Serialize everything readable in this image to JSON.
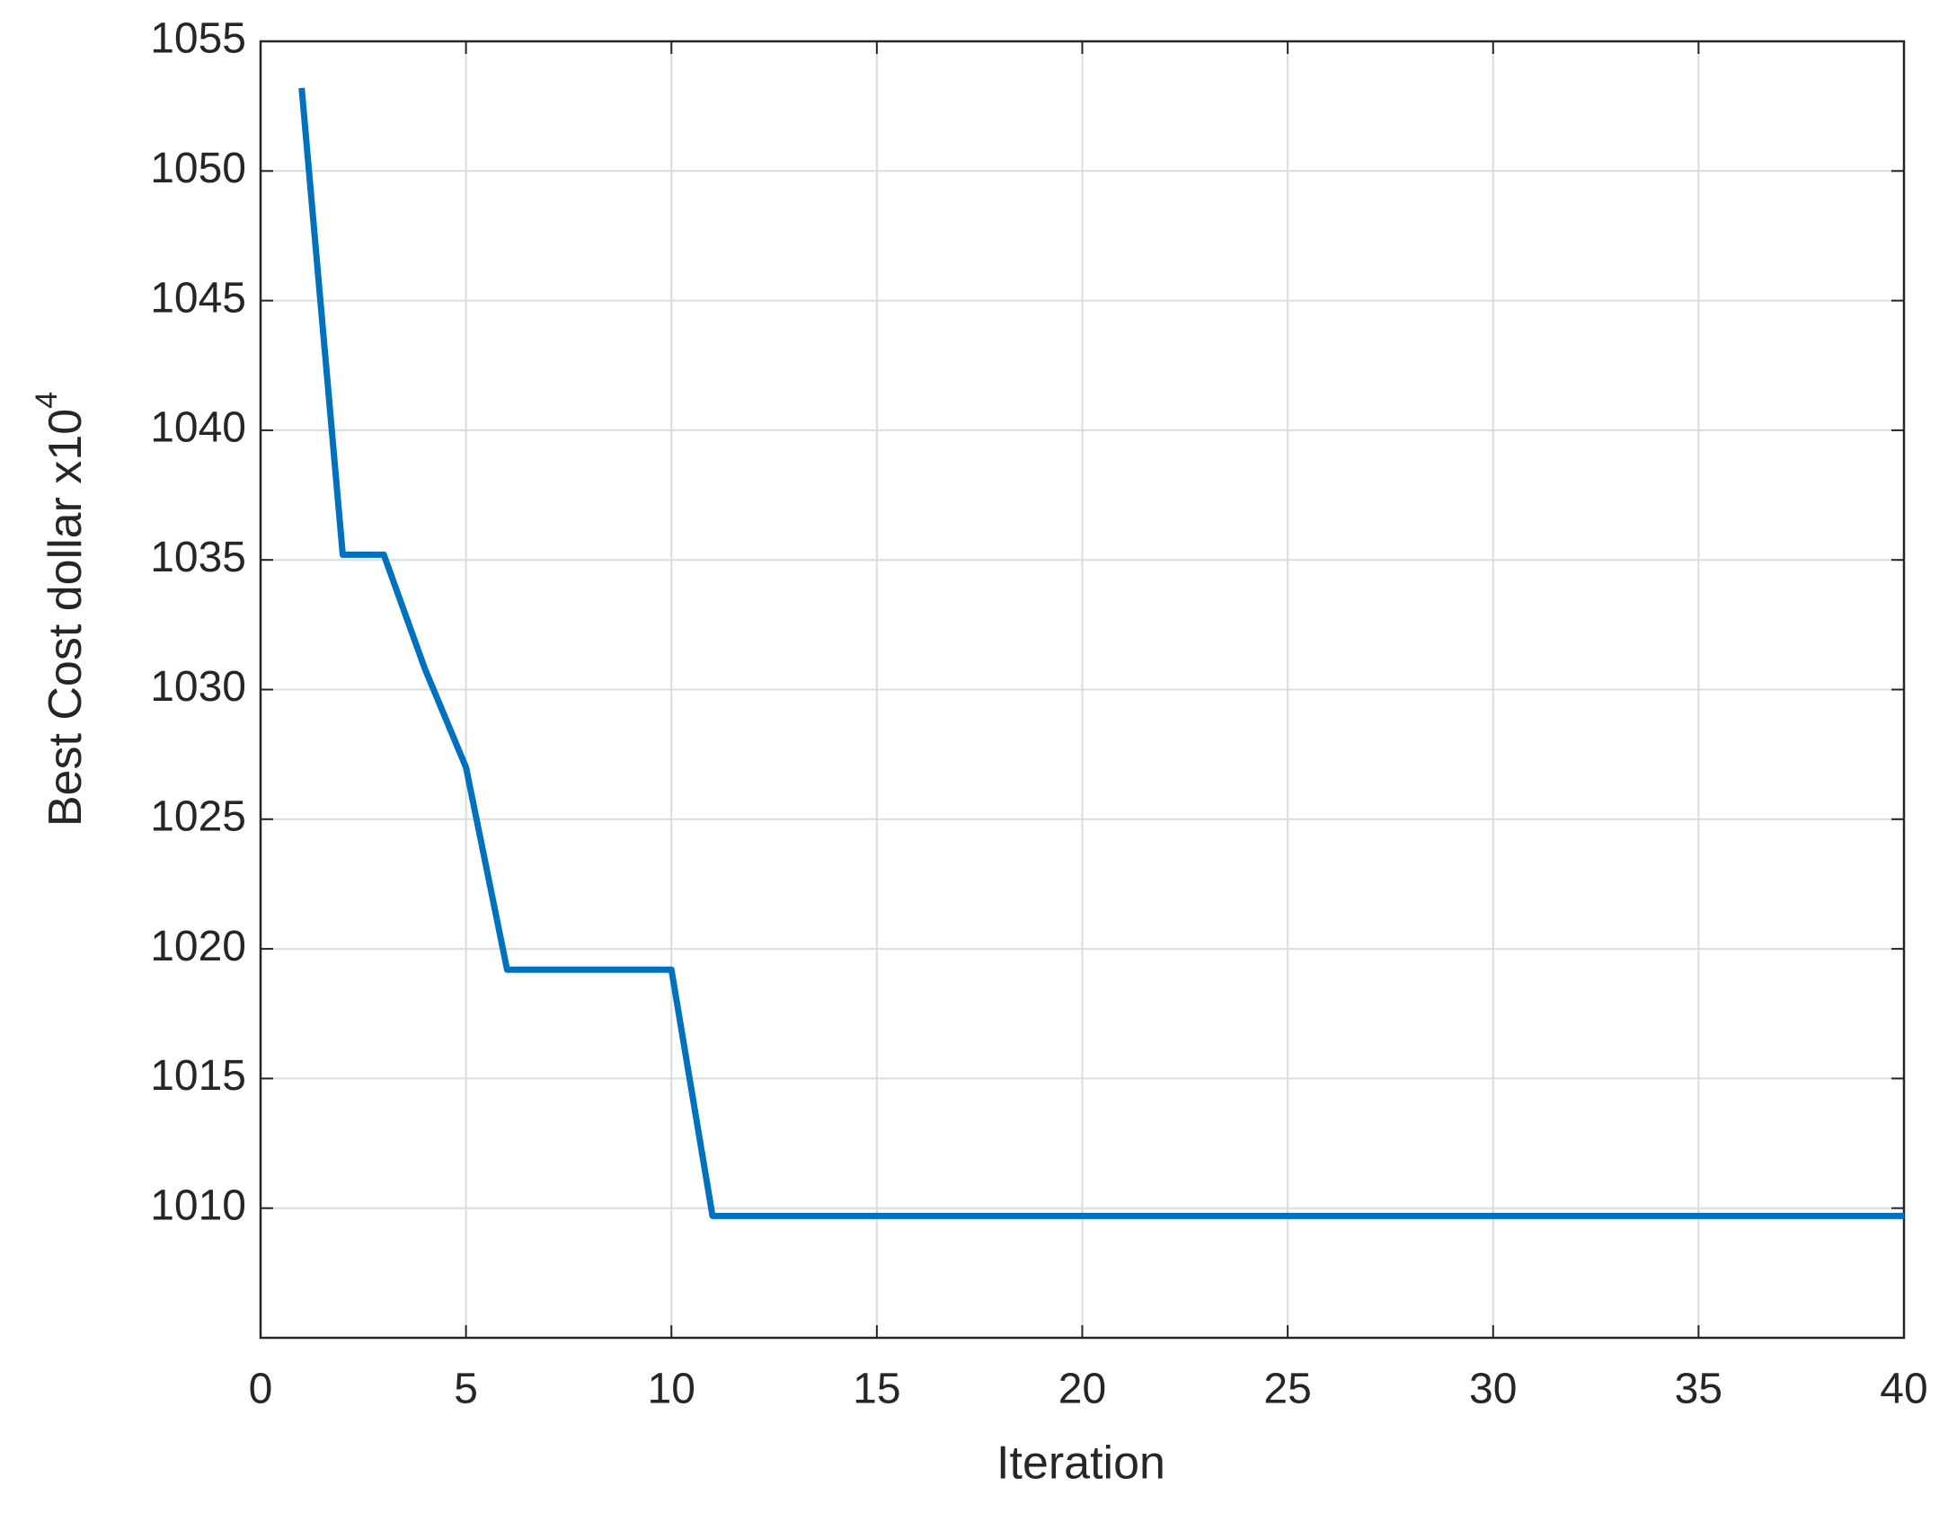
{
  "chart_data": {
    "type": "line",
    "xlabel": "Iteration",
    "ylabel": "Best Cost  dollar  x10",
    "ylabel_exponent": "4",
    "x": [
      1,
      2,
      3,
      4,
      5,
      6,
      7,
      8,
      9,
      10,
      11,
      12,
      13,
      14,
      15,
      16,
      17,
      18,
      19,
      20,
      21,
      22,
      23,
      24,
      25,
      26,
      27,
      28,
      29,
      30,
      31,
      32,
      33,
      34,
      35,
      36,
      37,
      38,
      39,
      40
    ],
    "series": [
      {
        "color": "#0072bd",
        "values": [
          1053.2,
          1035.2,
          1035.2,
          1030.8,
          1027,
          1019.2,
          1019.2,
          1019.2,
          1019.2,
          1019.2,
          1009.7,
          1009.7,
          1009.7,
          1009.7,
          1009.7,
          1009.7,
          1009.7,
          1009.7,
          1009.7,
          1009.7,
          1009.7,
          1009.7,
          1009.7,
          1009.7,
          1009.7,
          1009.7,
          1009.7,
          1009.7,
          1009.7,
          1009.7,
          1009.7,
          1009.7,
          1009.7,
          1009.7,
          1009.7,
          1009.7,
          1009.7,
          1009.7,
          1009.7,
          1009.7
        ]
      }
    ],
    "xlim": [
      0,
      40
    ],
    "xticks": [
      0,
      5,
      10,
      15,
      20,
      25,
      30,
      35,
      40
    ],
    "ylim": [
      1005,
      1055
    ],
    "yticks": [
      1010,
      1015,
      1020,
      1025,
      1030,
      1035,
      1040,
      1045,
      1050,
      1055
    ],
    "grid": true
  }
}
